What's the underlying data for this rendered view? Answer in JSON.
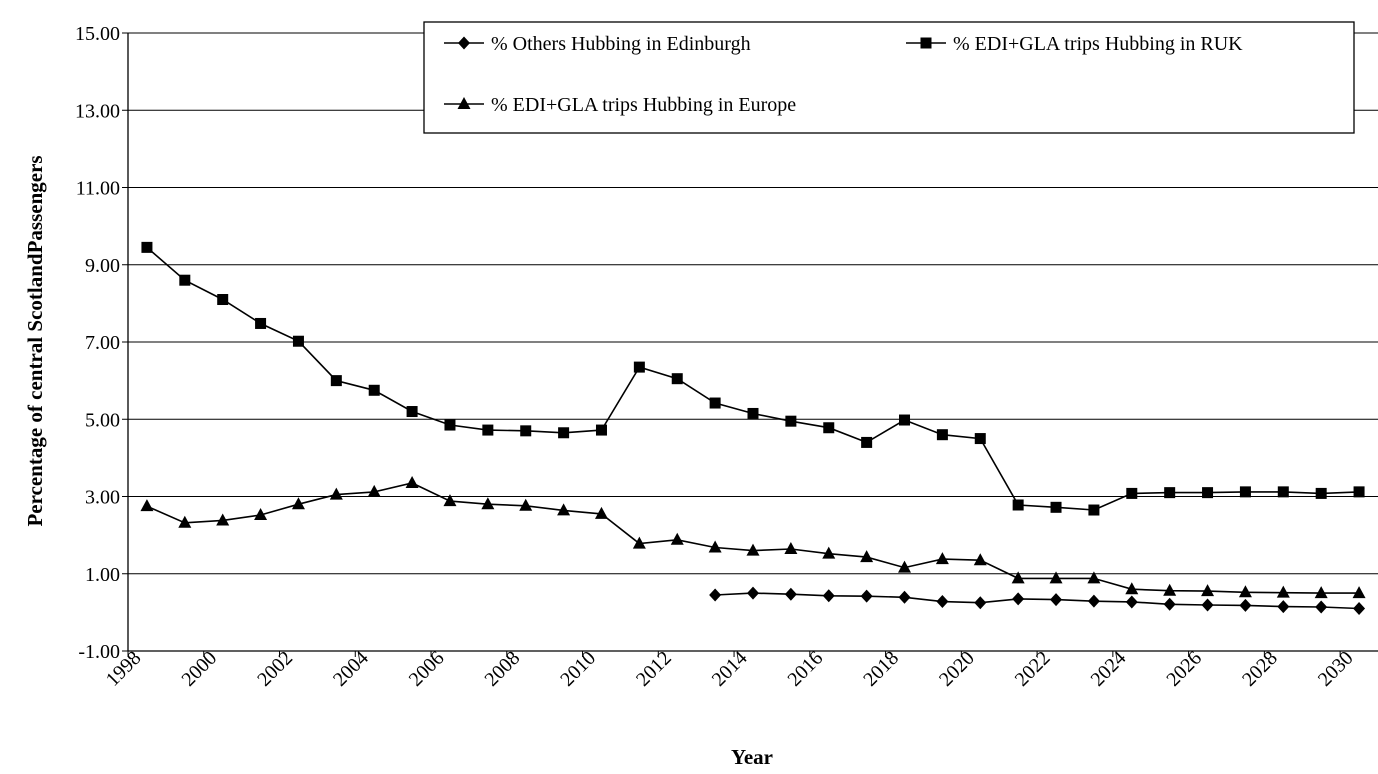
{
  "chart_data": {
    "type": "line",
    "title": "",
    "xlabel": "Year",
    "ylabel": "Percentage of central ScotlandPassengers",
    "xlim": [
      1998,
      2031
    ],
    "ylim": [
      -1,
      15
    ],
    "y_tick_labels": [
      "-1.00",
      "1.00",
      "3.00",
      "5.00",
      "7.00",
      "9.00",
      "11.00",
      "13.00",
      "15.00"
    ],
    "x_tick_labels": [
      "1998",
      "2000",
      "2002",
      "2004",
      "2006",
      "2008",
      "2010",
      "2012",
      "2014",
      "2016",
      "2018",
      "2020",
      "2022",
      "2024",
      "2026",
      "2028",
      "2030"
    ],
    "grid": "horizontal",
    "legend": "top-right",
    "series": [
      {
        "name": "% Others Hubbing in Edinburgh",
        "marker": "diamond",
        "x": [
          2013.5,
          2014.5,
          2015.5,
          2016.5,
          2017.5,
          2018.5,
          2019.5,
          2020.5,
          2021.5,
          2022.5,
          2023.5,
          2024.5,
          2025.5,
          2026.5,
          2027.5,
          2028.5,
          2029.5,
          2030.5
        ],
        "y": [
          0.45,
          0.5,
          0.47,
          0.43,
          0.42,
          0.39,
          0.28,
          0.25,
          0.35,
          0.33,
          0.29,
          0.27,
          0.21,
          0.19,
          0.18,
          0.15,
          0.14,
          0.1
        ]
      },
      {
        "name": "% EDI+GLA trips Hubbing in RUK",
        "marker": "square",
        "x": [
          1998.5,
          1999.5,
          2000.5,
          2001.5,
          2002.5,
          2003.5,
          2004.5,
          2005.5,
          2006.5,
          2007.5,
          2008.5,
          2009.5,
          2010.5,
          2011.5,
          2012.5,
          2013.5,
          2014.5,
          2015.5,
          2016.5,
          2017.5,
          2018.5,
          2019.5,
          2020.5,
          2021.5,
          2022.5,
          2023.5,
          2024.5,
          2025.5,
          2026.5,
          2027.5,
          2028.5,
          2029.5,
          2030.5
        ],
        "y": [
          9.45,
          8.6,
          8.1,
          7.48,
          7.02,
          6.0,
          5.75,
          5.2,
          4.85,
          4.72,
          4.7,
          4.65,
          4.72,
          6.35,
          6.05,
          5.42,
          5.15,
          4.95,
          4.78,
          4.4,
          4.98,
          4.6,
          4.5,
          2.78,
          2.72,
          2.65,
          3.08,
          3.1,
          3.1,
          3.12,
          3.12,
          3.08,
          3.12
        ]
      },
      {
        "name": "% EDI+GLA trips Hubbing in Europe",
        "marker": "triangle",
        "x": [
          1998.5,
          1999.5,
          2000.5,
          2001.5,
          2002.5,
          2003.5,
          2004.5,
          2005.5,
          2006.5,
          2007.5,
          2008.5,
          2009.5,
          2010.5,
          2011.5,
          2012.5,
          2013.5,
          2014.5,
          2015.5,
          2016.5,
          2017.5,
          2018.5,
          2019.5,
          2020.5,
          2021.5,
          2022.5,
          2023.5,
          2024.5,
          2025.5,
          2026.5,
          2027.5,
          2028.5,
          2029.5,
          2030.5
        ],
        "y": [
          2.75,
          2.32,
          2.38,
          2.52,
          2.8,
          3.05,
          3.12,
          3.35,
          2.88,
          2.8,
          2.76,
          2.64,
          2.55,
          1.78,
          1.88,
          1.68,
          1.6,
          1.64,
          1.52,
          1.43,
          1.16,
          1.38,
          1.35,
          0.88,
          0.88,
          0.88,
          0.6,
          0.56,
          0.55,
          0.52,
          0.51,
          0.5,
          0.5
        ]
      }
    ]
  }
}
